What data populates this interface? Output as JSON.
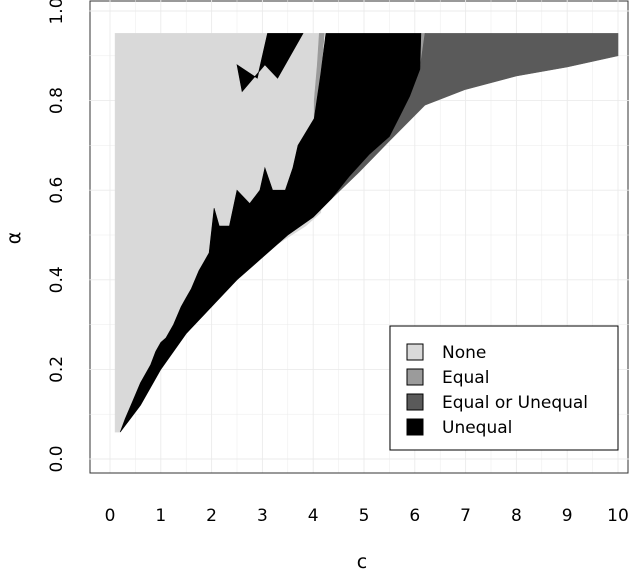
{
  "chart_data": {
    "type": "area",
    "title": "",
    "xlabel": "c",
    "ylabel": "α",
    "xlim": [
      -0.4,
      10.3
    ],
    "ylim": [
      -0.03,
      1.03
    ],
    "xticks": [
      "0",
      "1",
      "2",
      "3",
      "4",
      "5",
      "6",
      "7",
      "8",
      "9",
      "10"
    ],
    "yticks": [
      "0.0",
      "0.2",
      "0.4",
      "0.6",
      "0.8",
      "1.0"
    ],
    "grid": true,
    "legend_position": "bottom-right",
    "series": [
      {
        "name": "None",
        "color": "#d9d9d9",
        "regions": [
          [
            [
              0.1,
              0.95
            ],
            [
              4.2,
              0.95
            ],
            [
              4.2,
              0.95
            ],
            [
              4.15,
              0.55
            ],
            [
              3.85,
              0.52
            ],
            [
              3.3,
              0.48
            ],
            [
              2.7,
              0.44
            ],
            [
              2.2,
              0.38
            ],
            [
              1.7,
              0.33
            ],
            [
              1.2,
              0.26
            ],
            [
              0.8,
              0.19
            ],
            [
              0.4,
              0.11
            ],
            [
              0.2,
              0.06
            ],
            [
              0.1,
              0.06
            ]
          ]
        ]
      },
      {
        "name": "Equal",
        "color": "#9b9b9b",
        "regions": [
          [
            [
              4.12,
              0.95
            ],
            [
              4.22,
              0.95
            ],
            [
              4.15,
              0.86
            ],
            [
              4.02,
              0.76
            ],
            [
              4.02,
              0.8
            ],
            [
              4.08,
              0.88
            ]
          ],
          [
            [
              5.55,
              0.78
            ],
            [
              5.68,
              0.76
            ],
            [
              5.9,
              0.81
            ],
            [
              6.1,
              0.87
            ],
            [
              6.22,
              0.95
            ],
            [
              6.12,
              0.95
            ],
            [
              5.95,
              0.87
            ],
            [
              5.75,
              0.8
            ]
          ]
        ]
      },
      {
        "name": "Equal or Unequal",
        "color": "#5a5a5a",
        "regions": [
          [
            [
              4.35,
              0.58
            ],
            [
              4.9,
              0.64
            ],
            [
              5.5,
              0.71
            ],
            [
              6.2,
              0.79
            ],
            [
              7.0,
              0.825
            ],
            [
              8.0,
              0.855
            ],
            [
              9.0,
              0.875
            ],
            [
              10.0,
              0.9
            ],
            [
              10.0,
              0.95
            ],
            [
              6.2,
              0.95
            ],
            [
              6.1,
              0.87
            ],
            [
              5.9,
              0.81
            ],
            [
              5.68,
              0.76
            ],
            [
              5.5,
              0.72
            ],
            [
              5.1,
              0.68
            ],
            [
              4.7,
              0.63
            ]
          ]
        ]
      },
      {
        "name": "Unequal",
        "color": "#000000",
        "regions": [
          [
            [
              0.2,
              0.06
            ],
            [
              0.6,
              0.12
            ],
            [
              1.0,
              0.2
            ],
            [
              1.5,
              0.28
            ],
            [
              2.0,
              0.34
            ],
            [
              2.5,
              0.4
            ],
            [
              3.0,
              0.45
            ],
            [
              3.5,
              0.5
            ],
            [
              4.0,
              0.54
            ],
            [
              4.35,
              0.58
            ],
            [
              4.7,
              0.63
            ],
            [
              5.1,
              0.68
            ],
            [
              5.5,
              0.72
            ],
            [
              5.68,
              0.76
            ],
            [
              5.9,
              0.81
            ],
            [
              6.1,
              0.87
            ],
            [
              6.12,
              0.95
            ],
            [
              4.25,
              0.95
            ],
            [
              4.15,
              0.86
            ],
            [
              4.02,
              0.76
            ],
            [
              3.7,
              0.7
            ],
            [
              3.6,
              0.65
            ],
            [
              3.45,
              0.6
            ],
            [
              3.2,
              0.6
            ],
            [
              3.05,
              0.65
            ],
            [
              2.95,
              0.6
            ],
            [
              2.75,
              0.57
            ],
            [
              2.5,
              0.6
            ],
            [
              2.35,
              0.52
            ],
            [
              2.15,
              0.52
            ],
            [
              2.05,
              0.56
            ],
            [
              1.95,
              0.46
            ],
            [
              1.85,
              0.44
            ],
            [
              1.75,
              0.42
            ],
            [
              1.6,
              0.38
            ],
            [
              1.5,
              0.36
            ],
            [
              1.4,
              0.34
            ],
            [
              1.25,
              0.3
            ],
            [
              1.1,
              0.27
            ],
            [
              1.0,
              0.26
            ],
            [
              0.9,
              0.24
            ],
            [
              0.8,
              0.21
            ],
            [
              0.6,
              0.17
            ],
            [
              0.45,
              0.13
            ],
            [
              0.3,
              0.09
            ]
          ],
          [
            [
              3.1,
              0.95
            ],
            [
              3.8,
              0.95
            ],
            [
              3.3,
              0.85
            ],
            [
              3.05,
              0.88
            ],
            [
              2.6,
              0.82
            ],
            [
              2.5,
              0.88
            ],
            [
              2.9,
              0.85
            ]
          ]
        ]
      }
    ]
  }
}
